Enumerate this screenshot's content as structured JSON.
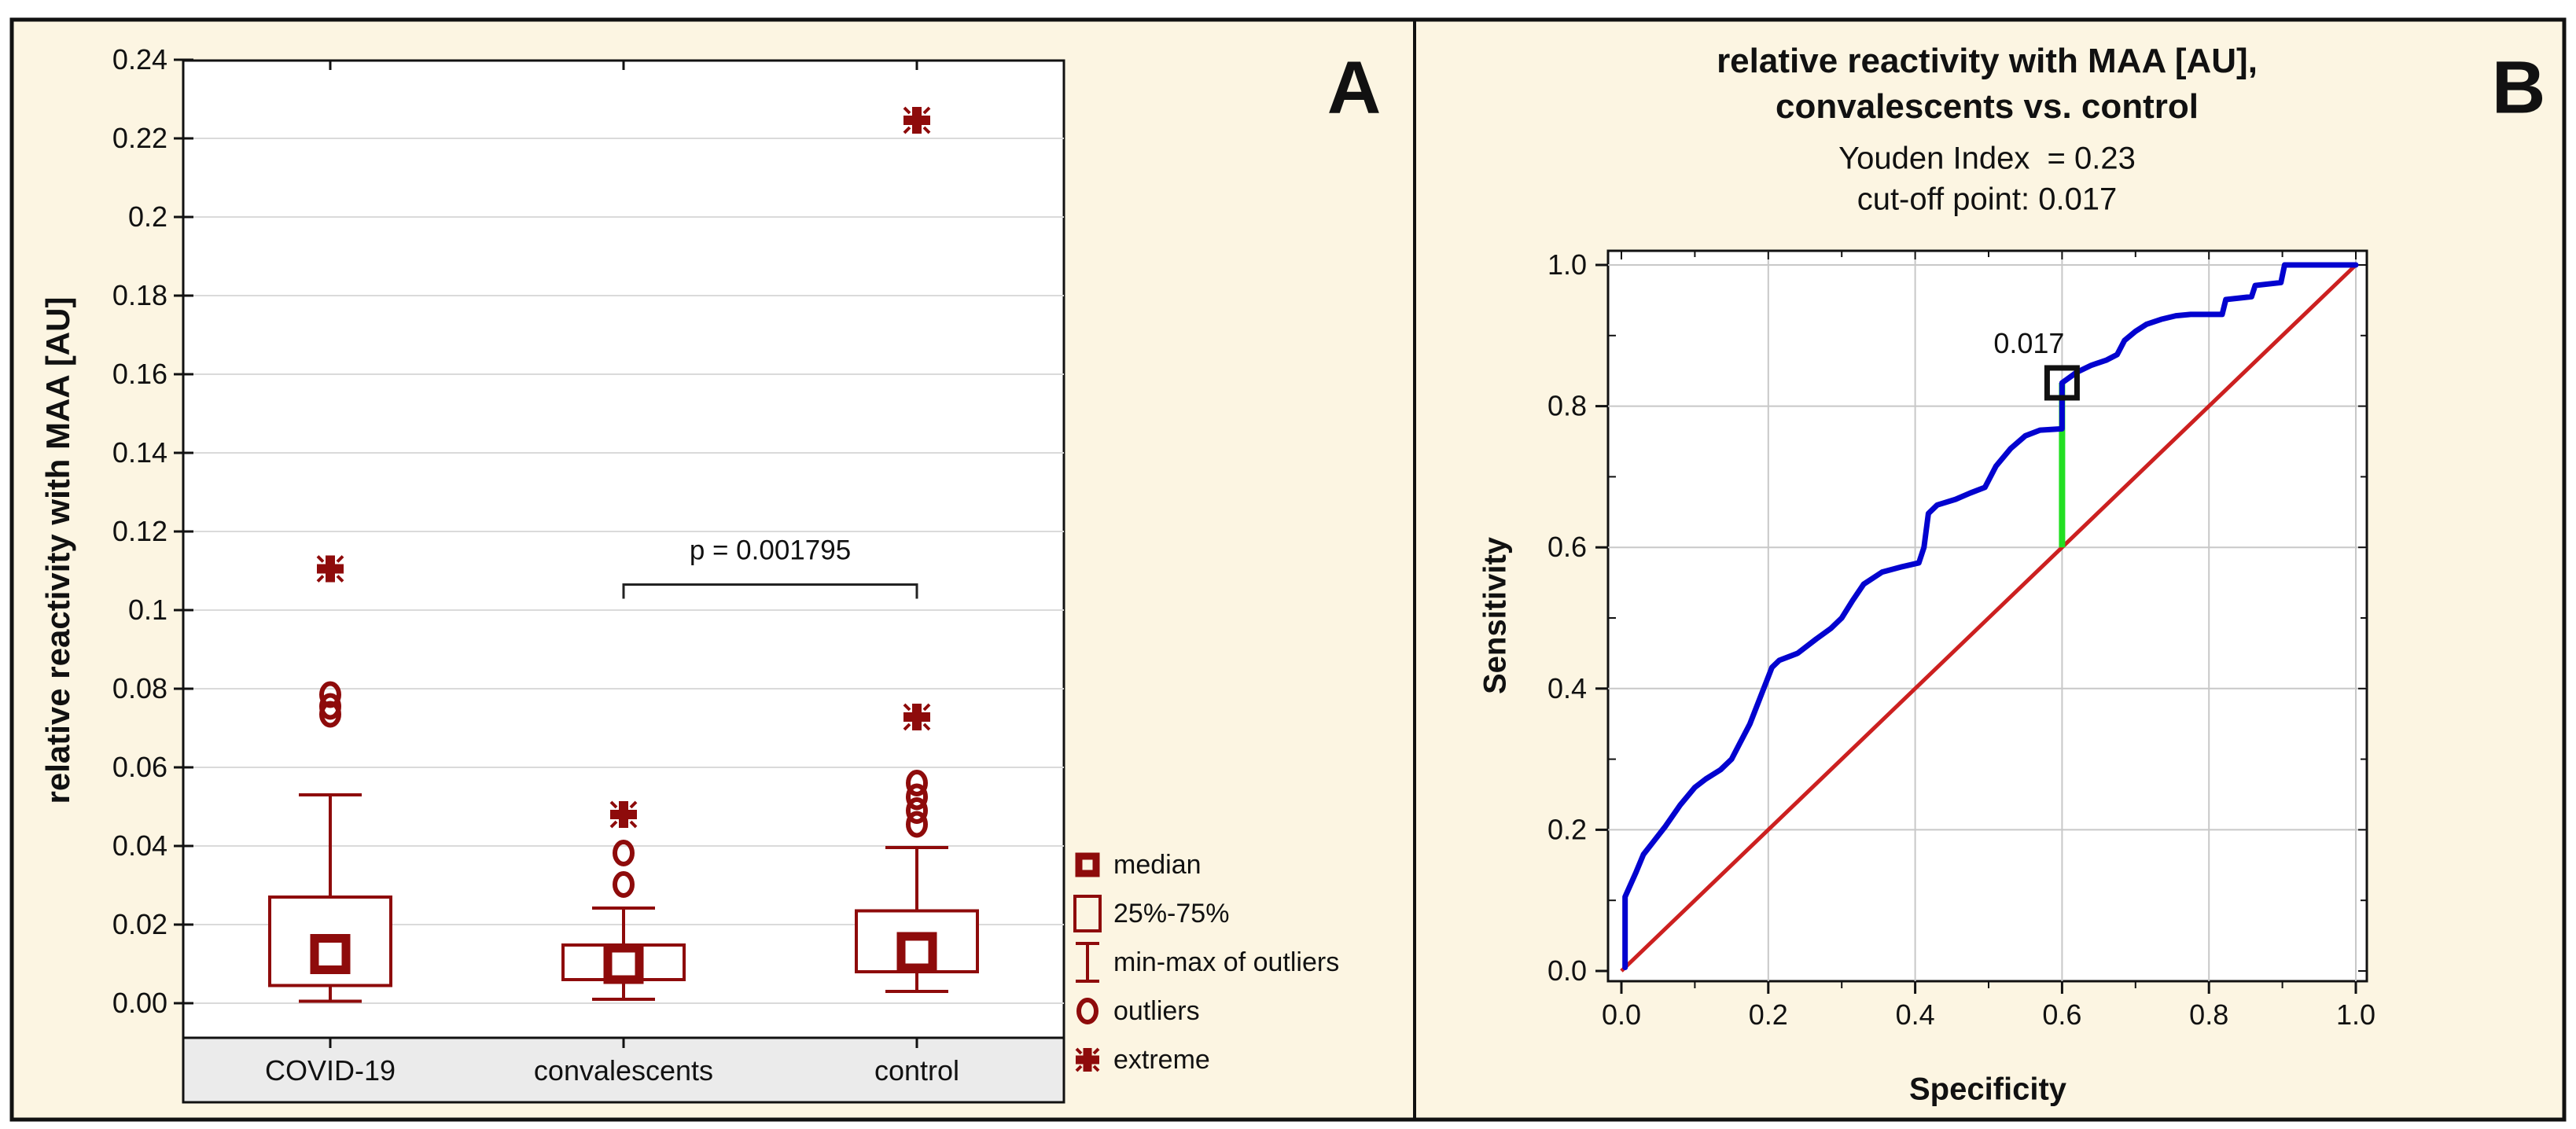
{
  "figure": {
    "background_color": "#FCF5E2",
    "border_color": "#111111"
  },
  "chart_data": [
    {
      "type": "box",
      "panel_label": "A",
      "y_axis": {
        "title": "relative reactivity with MAA [AU]",
        "min": 0,
        "max": 0.24,
        "tick_values": [
          0.0,
          0.02,
          0.04,
          0.06,
          0.08,
          0.1,
          0.12,
          0.14,
          0.16,
          0.18,
          0.2,
          0.22,
          0.24
        ],
        "tick_labels": [
          "0.00",
          "0.02",
          "0.04",
          "0.06",
          "0.08",
          "0.1",
          "0.12",
          "0.14",
          "0.16",
          "0.18",
          "0.2",
          "0.22",
          "0.24"
        ]
      },
      "x_axis": {
        "categories": [
          "COVID-19",
          "convalescents",
          "control"
        ]
      },
      "groups": [
        {
          "name": "COVID-19",
          "whisker_low": 0.0005,
          "q1": 0.0045,
          "median": 0.0125,
          "q3": 0.027,
          "whisker_high": 0.053,
          "outliers": [
            0.0735,
            0.0755,
            0.0785
          ],
          "extremes": [
            0.1105
          ]
        },
        {
          "name": "convalescents",
          "whisker_low": 0.001,
          "q1": 0.006,
          "median": 0.01,
          "q3": 0.0148,
          "whisker_high": 0.0242,
          "outliers": [
            0.0302,
            0.0382
          ],
          "extremes": [
            0.048
          ]
        },
        {
          "name": "control",
          "whisker_low": 0.003,
          "q1": 0.008,
          "median": 0.013,
          "q3": 0.0235,
          "whisker_high": 0.0396,
          "outliers": [
            0.0455,
            0.049,
            0.0525,
            0.056
          ],
          "extremes": [
            0.0728,
            0.2246
          ]
        }
      ],
      "p_annotation": {
        "text": "p = 0.001795",
        "from_group": 1,
        "to_group": 2,
        "bracket_y_value": 0.1065
      },
      "legend": [
        {
          "symbol": "median-square",
          "label": "median"
        },
        {
          "symbol": "box",
          "label": "25%-75%"
        },
        {
          "symbol": "whisker",
          "label": "min-max of outliers"
        },
        {
          "symbol": "circle",
          "label": "outliers"
        },
        {
          "symbol": "star",
          "label": "extreme"
        }
      ],
      "colors": {
        "marker": "#8E0B0B",
        "grid": "#DADADA",
        "band_fill": "#EBEBEB",
        "plot_fill": "#FFFFFF"
      }
    },
    {
      "type": "line",
      "panel_label": "B",
      "title_line1": "relative reactivity with MAA [AU],",
      "title_line2": "convalescents vs. control",
      "subtitle_line1": "Youden Index  = 0.23",
      "subtitle_line2": "cut-off point: 0.017",
      "x_axis": {
        "title": "Specificity",
        "min": 0,
        "max": 1,
        "tick_values": [
          0,
          0.2,
          0.4,
          0.6,
          0.8,
          1.0
        ],
        "tick_labels": [
          "0.0",
          "0.2",
          "0.4",
          "0.6",
          "0.8",
          "1.0"
        ],
        "minor_ticks": [
          0.1,
          0.3,
          0.5,
          0.7,
          0.9
        ]
      },
      "y_axis": {
        "title": "Sensitivity",
        "min": 0,
        "max": 1,
        "tick_values": [
          0,
          0.2,
          0.4,
          0.6,
          0.8,
          1.0
        ],
        "tick_labels": [
          "0.0",
          "0.2",
          "0.4",
          "0.6",
          "0.8",
          "1.0"
        ],
        "minor_ticks": [
          0.1,
          0.3,
          0.5,
          0.7,
          0.9
        ]
      },
      "series": [
        {
          "name": "ROC curve",
          "color": "#0202CF",
          "width": 7,
          "points": [
            [
              0.005,
              0.005
            ],
            [
              0.005,
              0.105
            ],
            [
              0.02,
              0.14
            ],
            [
              0.03,
              0.165
            ],
            [
              0.045,
              0.185
            ],
            [
              0.06,
              0.205
            ],
            [
              0.08,
              0.235
            ],
            [
              0.1,
              0.26
            ],
            [
              0.115,
              0.272
            ],
            [
              0.135,
              0.285
            ],
            [
              0.15,
              0.3
            ],
            [
              0.16,
              0.32
            ],
            [
              0.175,
              0.35
            ],
            [
              0.19,
              0.39
            ],
            [
              0.205,
              0.43
            ],
            [
              0.215,
              0.44
            ],
            [
              0.24,
              0.45
            ],
            [
              0.265,
              0.47
            ],
            [
              0.285,
              0.485
            ],
            [
              0.3,
              0.5
            ],
            [
              0.315,
              0.525
            ],
            [
              0.33,
              0.548
            ],
            [
              0.355,
              0.565
            ],
            [
              0.38,
              0.572
            ],
            [
              0.405,
              0.578
            ],
            [
              0.412,
              0.6
            ],
            [
              0.418,
              0.648
            ],
            [
              0.43,
              0.66
            ],
            [
              0.455,
              0.668
            ],
            [
              0.475,
              0.677
            ],
            [
              0.495,
              0.685
            ],
            [
              0.51,
              0.715
            ],
            [
              0.53,
              0.74
            ],
            [
              0.55,
              0.758
            ],
            [
              0.57,
              0.766
            ],
            [
              0.6,
              0.768
            ],
            [
              0.6,
              0.833
            ],
            [
              0.62,
              0.848
            ],
            [
              0.64,
              0.858
            ],
            [
              0.66,
              0.865
            ],
            [
              0.675,
              0.873
            ],
            [
              0.685,
              0.893
            ],
            [
              0.7,
              0.906
            ],
            [
              0.715,
              0.916
            ],
            [
              0.735,
              0.923
            ],
            [
              0.755,
              0.928
            ],
            [
              0.775,
              0.93
            ],
            [
              0.818,
              0.93
            ],
            [
              0.823,
              0.951
            ],
            [
              0.858,
              0.955
            ],
            [
              0.863,
              0.971
            ],
            [
              0.898,
              0.975
            ],
            [
              0.903,
              1.0
            ],
            [
              1.0,
              1.0
            ]
          ]
        },
        {
          "name": "reference diagonal",
          "color": "#CC2020",
          "width": 5,
          "points": [
            [
              0,
              0
            ],
            [
              1,
              1
            ]
          ]
        }
      ],
      "cutoff": {
        "label": "0.017",
        "x": 0.6,
        "y_on_curve": 0.833,
        "y_on_diagonal": 0.6,
        "line_color": "#22DF22",
        "marker_color": "#111111"
      },
      "colors": {
        "grid": "#C8C8C8",
        "plot_fill": "#FFFFFF"
      }
    }
  ]
}
